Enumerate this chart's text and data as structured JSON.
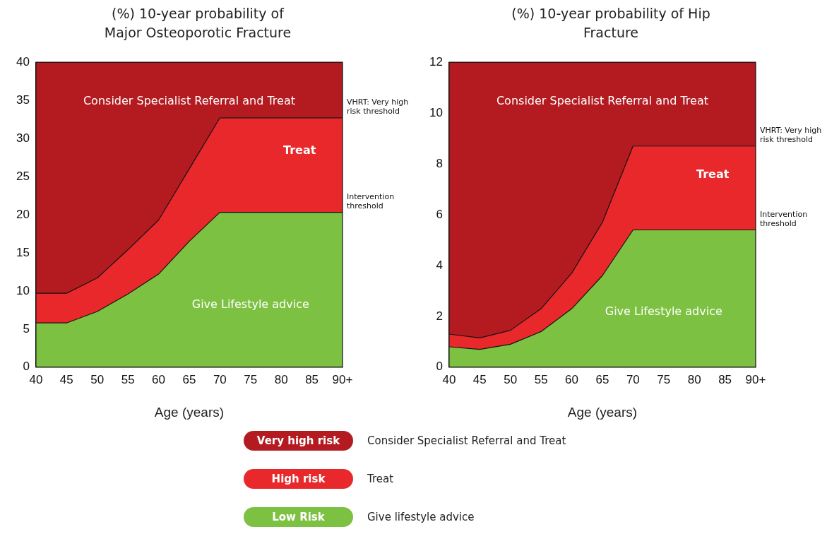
{
  "chart_data": [
    {
      "type": "area",
      "stacked": true,
      "title": "(%) 10-year probability of Major Osteoporotic Fracture",
      "xlabel": "Age (years)",
      "categories": [
        "40",
        "45",
        "50",
        "55",
        "60",
        "65",
        "70",
        "75",
        "80",
        "85",
        "90+"
      ],
      "series": [
        {
          "name": "Low Risk",
          "color": "#7dc142",
          "values": [
            5.8,
            5.8,
            7.3,
            9.6,
            12.2,
            16.5,
            20.3,
            20.3,
            20.3,
            20.3,
            20.3
          ]
        },
        {
          "name": "High risk",
          "color": "#e8282b",
          "values": [
            3.9,
            3.9,
            4.4,
            5.8,
            7.1,
            9.5,
            12.4,
            12.4,
            12.4,
            12.4,
            12.4
          ]
        },
        {
          "name": "Very high risk",
          "color": "#b31b20",
          "values": [
            30.3,
            30.3,
            28.3,
            24.6,
            20.7,
            14,
            7.3,
            7.3,
            7.3,
            7.3,
            7.3
          ]
        }
      ],
      "ylim": [
        0,
        40
      ],
      "yticks": [
        0,
        5,
        10,
        15,
        20,
        25,
        30,
        35,
        40
      ],
      "grid": false,
      "legend": "bottom",
      "annotations": [
        "Consider Specialist Referral and Treat",
        "Treat",
        "Give Lifestyle advice",
        {
          "text": "VHRT: Very high risk threshold",
          "x": "90+",
          "y": 32.7
        },
        {
          "text": "Intervention threshold",
          "x": "90+",
          "y": 20.3
        },
        "Consider Specialist Referral and Treat",
        "Treat",
        "Give lifestyle advice"
      ]
    },
    {
      "type": "area",
      "stacked": true,
      "title": "(%) 10-year probability of Hip Fracture",
      "xlabel": "Age (years)",
      "categories": [
        "40",
        "45",
        "50",
        "55",
        "60",
        "65",
        "70",
        "75",
        "80",
        "85",
        "90+"
      ],
      "series": [
        {
          "color": "#7dc142",
          "values": [
            0.8,
            0.7,
            0.9,
            1.4,
            2.3,
            3.6,
            5.4,
            5.4,
            5.4,
            5.4,
            5.4
          ]
        },
        {
          "color": "#e8282b",
          "values": [
            0.5,
            0.45,
            0.55,
            0.9,
            1.4,
            2.1,
            3.3,
            3.3,
            3.3,
            3.3,
            3.3
          ]
        },
        {
          "color": "#b31b20",
          "values": [
            10.7,
            10.85,
            10.55,
            9.7,
            8.3,
            6.3,
            3.3,
            3.3,
            3.3,
            3.3,
            3.3
          ]
        }
      ],
      "ylim": [
        0,
        12
      ],
      "yticks": [
        0,
        2,
        4,
        6,
        8,
        10,
        12
      ],
      "grid": false,
      "legend": false,
      "annotations": [
        "Consider Specialist Referral and Treat",
        "Treat",
        "Give Lifestyle advice",
        {
          "text": "VHRT: Very high risk threshold",
          "x": "90+",
          "y": 8.7
        },
        {
          "text": "Intervention threshold",
          "x": "90+",
          "y": 5.4
        }
      ]
    }
  ]
}
